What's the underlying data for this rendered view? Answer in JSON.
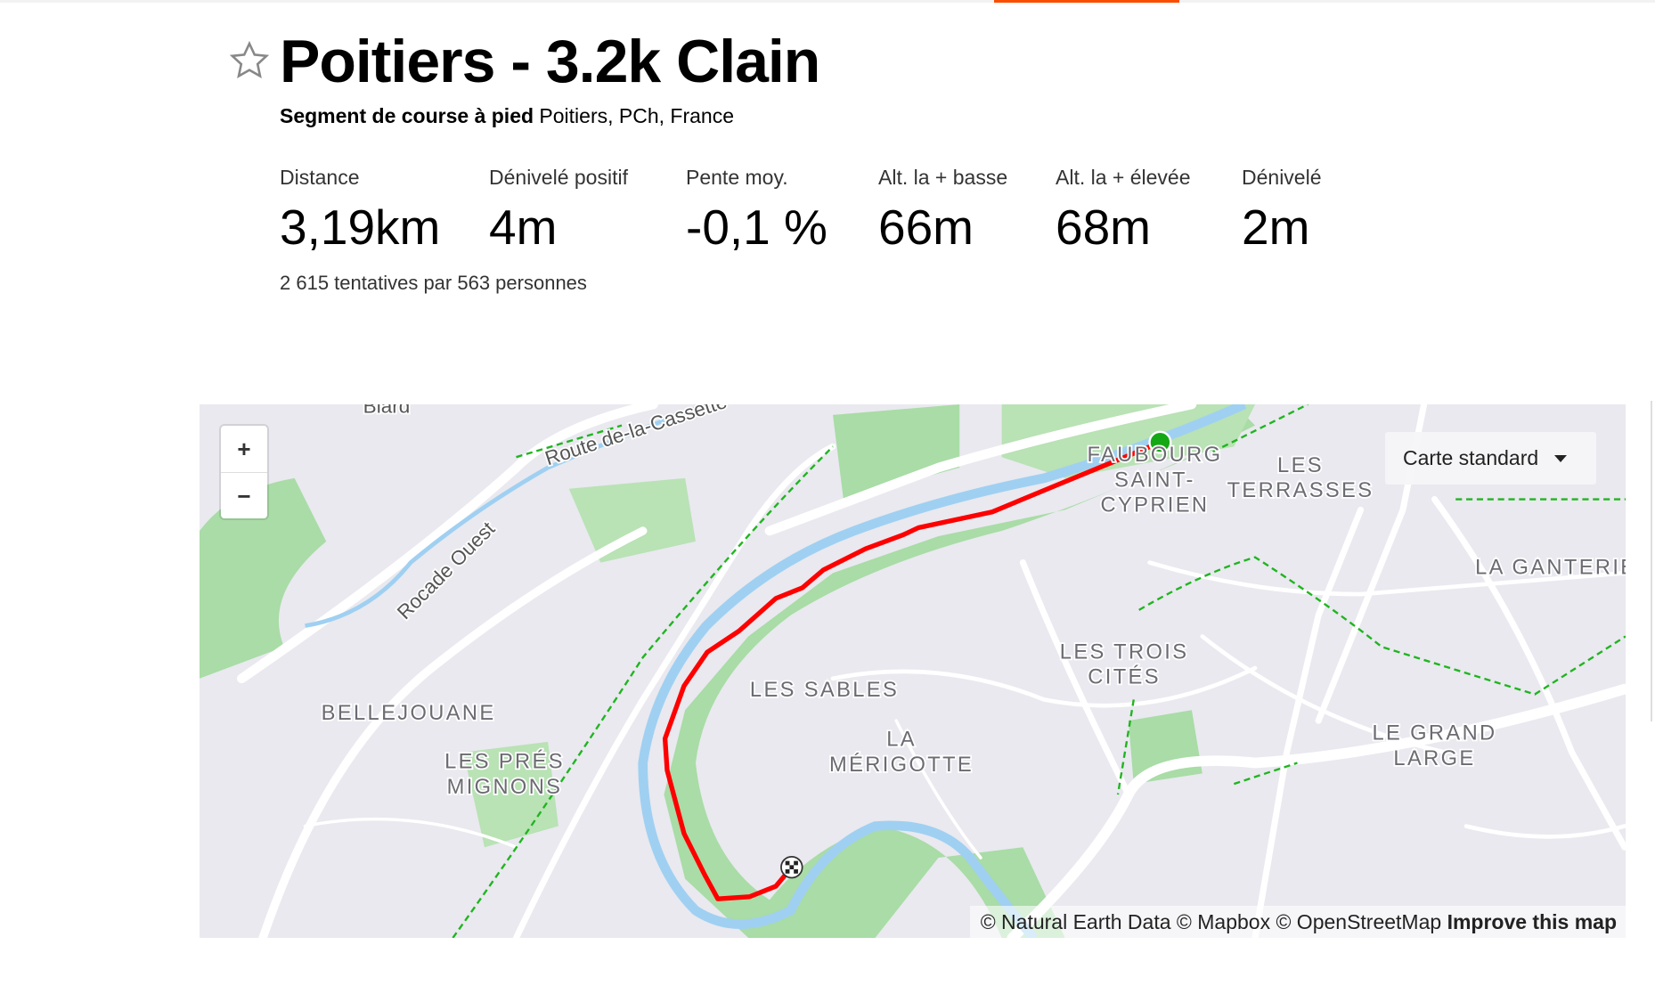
{
  "segment": {
    "title": "Poitiers - 3.2k Clain",
    "type_label": "Segment de course à pied",
    "location": "Poitiers, PCh, France",
    "starred": false
  },
  "stats": [
    {
      "label": "Distance",
      "value": "3,19km"
    },
    {
      "label": "Dénivelé positif",
      "value": "4m"
    },
    {
      "label": "Pente moy.",
      "value": "-0,1 %"
    },
    {
      "label": "Alt. la + basse",
      "value": "66m"
    },
    {
      "label": "Alt. la + élevée",
      "value": "68m"
    },
    {
      "label": "Dénivelé",
      "value": "2m"
    }
  ],
  "attempts": "2 615 tentatives par 563 personnes",
  "map": {
    "zoom_in": "+",
    "zoom_out": "−",
    "map_type": "Carte standard",
    "attribution": "© Natural Earth Data © Mapbox © OpenStreetMap",
    "improve_link": "Improve this map",
    "route_color": "#ff0000",
    "start_color": "#14a814",
    "places": {
      "biard": "Biard",
      "route_cassette": "Route de-la-Cassette",
      "rocade": "Rocade Ouest",
      "faubourg1": "FAUBOURG",
      "faubourg2": "SAINT-",
      "faubourg3": "CYPRIEN",
      "terrasses1": "LES",
      "terrasses2": "TERRASSES",
      "ganterie": "LA GANTERIE",
      "trois1": "LES TROIS",
      "trois2": "CITÉS",
      "sables": "LES SABLES",
      "merigotte1": "LA",
      "merigotte2": "MÉRIGOTTE",
      "bellejouane": "BELLEJOUANE",
      "pres1": "LES PRÉS",
      "pres2": "MIGNONS",
      "grandlarge1": "LE GRAND",
      "grandlarge2": "LARGE"
    }
  }
}
